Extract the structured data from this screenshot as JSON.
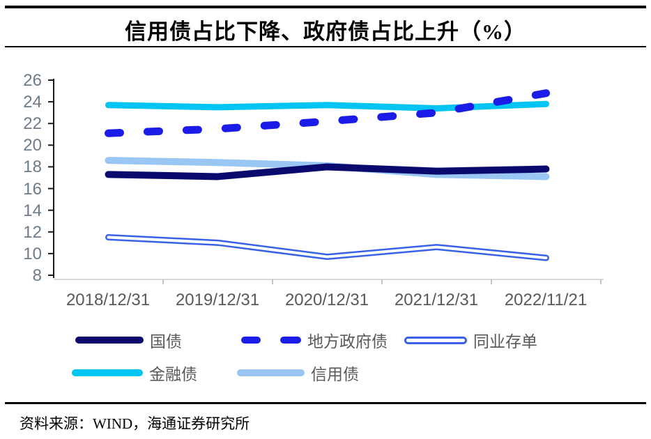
{
  "title": "信用债占比下降、政府债占比上升（%）",
  "source_note": "资料来源：WIND，海通证券研究所",
  "chart_data": {
    "type": "line",
    "categories": [
      "2018/12/31",
      "2019/12/31",
      "2020/12/31",
      "2021/12/31",
      "2022/11/21"
    ],
    "series": [
      {
        "key": "treasury-bonds",
        "name": "国债",
        "style": "solid",
        "color": "#0a0a6e",
        "values": [
          17.3,
          17.1,
          18.0,
          17.6,
          17.8
        ]
      },
      {
        "key": "local-gov-bonds",
        "name": "地方政府债",
        "style": "dashed",
        "color": "#1c1ce8",
        "values": [
          21.1,
          21.5,
          22.2,
          23.0,
          24.8
        ]
      },
      {
        "key": "interbank-ncd",
        "name": "同业存单",
        "style": "outline",
        "color": "#3a62e8",
        "values": [
          11.5,
          11.0,
          9.7,
          10.6,
          9.6
        ]
      },
      {
        "key": "financial-bonds",
        "name": "金融债",
        "style": "solid",
        "color": "#00c4f2",
        "values": [
          23.7,
          23.5,
          23.7,
          23.4,
          23.8
        ]
      },
      {
        "key": "credit-bonds",
        "name": "信用债",
        "style": "solid",
        "color": "#9ac6f4",
        "values": [
          18.6,
          18.4,
          18.1,
          17.3,
          17.1
        ]
      }
    ],
    "ylim": [
      8,
      26
    ],
    "yticks": [
      26,
      24,
      22,
      20,
      18,
      16,
      14,
      12,
      10,
      8
    ],
    "ylabel": "",
    "xlabel": "",
    "grid": false,
    "legend_position": "bottom"
  }
}
